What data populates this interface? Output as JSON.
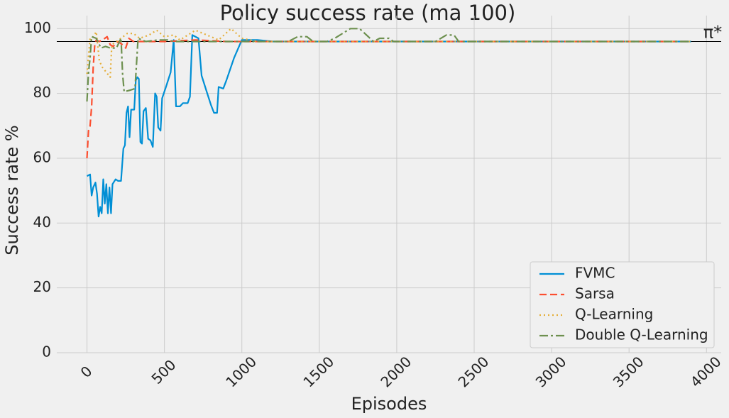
{
  "chart_data": {
    "type": "line",
    "title": "Policy success rate (ma 100)",
    "x_label": "Episodes",
    "y_label": "Success rate %",
    "xlim": [
      -195,
      4095
    ],
    "ylim": [
      0,
      104
    ],
    "xticks": [
      0,
      500,
      1000,
      1500,
      2000,
      2500,
      3000,
      3500,
      4000
    ],
    "yticks": [
      0,
      20,
      40,
      60,
      80,
      100
    ],
    "grid": true,
    "legend": "lower right",
    "reference_line": {
      "value": 96,
      "label": "π*"
    },
    "series": [
      {
        "name": "FVMC",
        "color": "#008fd5",
        "dash": "solid",
        "x": [
          0,
          20,
          30,
          40,
          55,
          65,
          75,
          85,
          95,
          105,
          115,
          125,
          135,
          145,
          155,
          165,
          185,
          200,
          220,
          235,
          245,
          255,
          265,
          275,
          285,
          305,
          315,
          325,
          335,
          345,
          355,
          365,
          380,
          395,
          410,
          425,
          440,
          450,
          460,
          475,
          485,
          510,
          540,
          560,
          575,
          600,
          620,
          650,
          665,
          680,
          720,
          740,
          770,
          800,
          820,
          840,
          850,
          880,
          900,
          950,
          1000,
          1100,
          1200,
          1500,
          3900
        ],
        "values": [
          54.5,
          55,
          48.5,
          51,
          52.5,
          49,
          42,
          45,
          43,
          53.5,
          46,
          52,
          43,
          51,
          43,
          52,
          53.5,
          53,
          53,
          63,
          64,
          74,
          76,
          66.5,
          75,
          75,
          84,
          85,
          84.5,
          65,
          64.5,
          74.5,
          75.5,
          66,
          65.5,
          63.5,
          80,
          79,
          69.5,
          68.5,
          78.5,
          82,
          86.5,
          96.5,
          76,
          76,
          77,
          77,
          79,
          98,
          97,
          85.5,
          81,
          76.5,
          74,
          74,
          82,
          81.5,
          84,
          91,
          96.5,
          96.5,
          96,
          96,
          96
        ]
      },
      {
        "name": "Sarsa",
        "color": "#fc4f30",
        "dash": "dashed",
        "x": [
          0,
          10,
          20,
          30,
          40,
          50,
          60,
          80,
          100,
          130,
          150,
          170,
          200,
          230,
          250,
          270,
          300,
          500,
          700,
          900,
          3900
        ],
        "values": [
          60,
          68.5,
          70,
          76,
          88,
          95,
          96.5,
          96,
          96.5,
          97.5,
          95,
          94.5,
          96,
          95,
          94,
          97,
          96,
          96,
          96.5,
          96,
          96
        ]
      },
      {
        "name": "Q-Learning",
        "color": "#e5ae38",
        "dash": "dotted",
        "x": [
          0,
          20,
          40,
          60,
          80,
          100,
          150,
          160,
          190,
          220,
          260,
          300,
          340,
          400,
          450,
          500,
          560,
          600,
          700,
          800,
          850,
          930,
          1000,
          1100,
          3900
        ],
        "values": [
          86,
          97,
          97.5,
          99,
          90,
          88,
          85,
          95,
          96,
          97,
          98.5,
          98.5,
          97,
          98,
          99.5,
          97.5,
          98,
          96.5,
          99.5,
          97.5,
          96.5,
          100,
          97,
          96,
          96
        ]
      },
      {
        "name": "Double Q-Learning",
        "color": "#6d904f",
        "dash": "dashdot",
        "x": [
          0,
          10,
          20,
          30,
          60,
          90,
          120,
          150,
          190,
          220,
          230,
          240,
          280,
          310,
          330,
          380,
          460,
          520,
          560,
          1000,
          1300,
          1360,
          1420,
          1460,
          1550,
          1600,
          1700,
          1760,
          1850,
          1890,
          1950,
          1980,
          2250,
          2320,
          2370,
          2400,
          3900
        ],
        "values": [
          77.5,
          86.5,
          91,
          97.5,
          97,
          94,
          94.5,
          94,
          94,
          97,
          86,
          80.5,
          81,
          81.5,
          97,
          96,
          96.5,
          96.5,
          96,
          96,
          96,
          97.5,
          97.5,
          96,
          96,
          97,
          100,
          100,
          96,
          97,
          97,
          96,
          96,
          98,
          98,
          96,
          96
        ]
      }
    ]
  }
}
